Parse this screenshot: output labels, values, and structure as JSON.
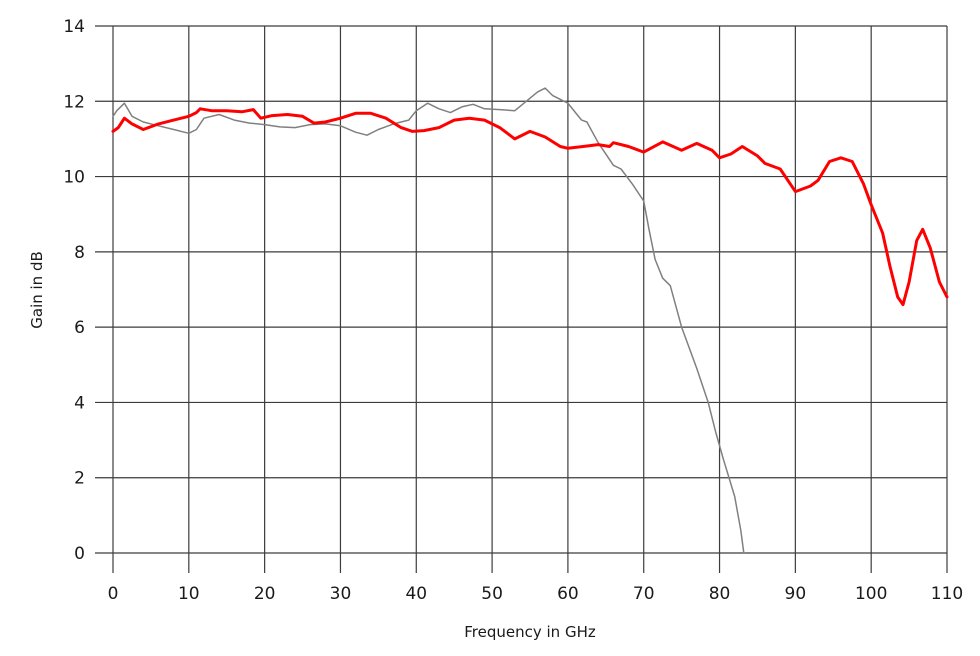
{
  "chart_data": {
    "type": "line",
    "title": "",
    "xlabel": "Frequency in GHz",
    "ylabel": "Gain in dB",
    "xlim": [
      0,
      110
    ],
    "ylim": [
      0,
      14
    ],
    "xticks": [
      0,
      10,
      20,
      30,
      40,
      50,
      60,
      70,
      80,
      90,
      100,
      110
    ],
    "yticks": [
      0,
      2,
      4,
      6,
      8,
      10,
      12,
      14
    ],
    "grid": true,
    "legend": null,
    "series": [
      {
        "name": "red trace",
        "color": "#ff0000",
        "width": 3,
        "x": [
          0,
          0.7,
          1.5,
          2.5,
          4,
          6,
          8,
          10,
          11,
          11.5,
          13,
          15,
          17,
          18.5,
          19.5,
          21,
          23,
          25,
          26.5,
          28,
          30,
          32,
          34,
          36,
          38,
          39.5,
          41,
          43,
          45,
          47,
          49,
          51,
          53,
          55,
          57,
          59,
          60,
          62,
          64,
          65.5,
          66,
          68,
          70,
          72.5,
          75,
          77,
          79,
          80,
          81.5,
          83,
          85,
          86,
          88,
          90,
          92,
          93,
          94.5,
          96,
          97.5,
          99,
          100,
          101.5,
          102.5,
          103.5,
          104.2,
          105,
          106,
          106.8,
          107.8,
          109,
          110
        ],
        "y": [
          11.2,
          11.3,
          11.55,
          11.4,
          11.25,
          11.4,
          11.5,
          11.6,
          11.7,
          11.8,
          11.75,
          11.75,
          11.72,
          11.78,
          11.55,
          11.62,
          11.65,
          11.6,
          11.42,
          11.45,
          11.55,
          11.68,
          11.68,
          11.55,
          11.3,
          11.2,
          11.22,
          11.3,
          11.5,
          11.55,
          11.5,
          11.3,
          11.0,
          11.2,
          11.05,
          10.8,
          10.75,
          10.8,
          10.85,
          10.8,
          10.9,
          10.8,
          10.65,
          10.92,
          10.7,
          10.88,
          10.7,
          10.5,
          10.6,
          10.8,
          10.55,
          10.35,
          10.2,
          9.6,
          9.75,
          9.9,
          10.4,
          10.5,
          10.4,
          9.8,
          9.25,
          8.5,
          7.6,
          6.8,
          6.6,
          7.2,
          8.3,
          8.6,
          8.1,
          7.2,
          6.8
        ]
      },
      {
        "name": "gray trace",
        "color": "#808080",
        "width": 1.5,
        "x": [
          0,
          0.5,
          1.5,
          2.5,
          4,
          6,
          8,
          10,
          11,
          12,
          14,
          16,
          18,
          20,
          22,
          24,
          26,
          28,
          30,
          32,
          33.5,
          35,
          37,
          39,
          40,
          41.5,
          43,
          44.5,
          46,
          47.5,
          49,
          51,
          53,
          54.5,
          56,
          57,
          58,
          60,
          61,
          61.8,
          62.5,
          64,
          66,
          67,
          68.5,
          70,
          70.7,
          71.5,
          72.5,
          73.5,
          75,
          77,
          78.5,
          79.5,
          80.5,
          82,
          82.8,
          83.2
        ],
        "y": [
          11.6,
          11.75,
          11.95,
          11.6,
          11.45,
          11.35,
          11.25,
          11.15,
          11.25,
          11.55,
          11.65,
          11.5,
          11.42,
          11.38,
          11.32,
          11.3,
          11.38,
          11.4,
          11.35,
          11.18,
          11.1,
          11.25,
          11.4,
          11.5,
          11.75,
          11.95,
          11.8,
          11.7,
          11.85,
          11.92,
          11.8,
          11.78,
          11.75,
          12.0,
          12.25,
          12.35,
          12.15,
          11.95,
          11.7,
          11.5,
          11.45,
          10.9,
          10.3,
          10.2,
          9.8,
          9.35,
          8.6,
          7.8,
          7.3,
          7.1,
          6.0,
          4.9,
          4.0,
          3.2,
          2.5,
          1.5,
          0.6,
          0
        ]
      }
    ]
  }
}
